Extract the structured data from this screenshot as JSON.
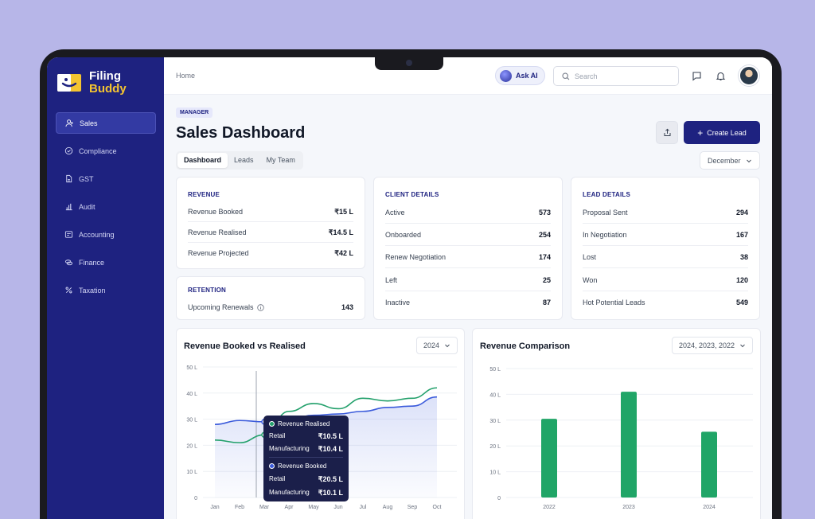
{
  "app": {
    "name_line1": "Filing",
    "name_line2": "Buddy"
  },
  "sidebar": {
    "items": [
      {
        "label": "Sales",
        "icon": "users-icon",
        "active": true
      },
      {
        "label": "Compliance",
        "icon": "check-circle-icon"
      },
      {
        "label": "GST",
        "icon": "document-icon"
      },
      {
        "label": "Audit",
        "icon": "bar-chart-icon"
      },
      {
        "label": "Accounting",
        "icon": "ledger-icon"
      },
      {
        "label": "Finance",
        "icon": "coins-icon"
      },
      {
        "label": "Taxation",
        "icon": "percent-icon"
      }
    ]
  },
  "topbar": {
    "breadcrumb": "Home",
    "ask_ai": "Ask AI",
    "search_placeholder": "Search"
  },
  "header": {
    "badge": "MANAGER",
    "title": "Sales Dashboard",
    "create_label": "Create Lead"
  },
  "tabs": [
    "Dashboard",
    "Leads",
    "My Team"
  ],
  "month_select": "December",
  "revenue": {
    "title": "REVENUE",
    "rows": [
      {
        "label": "Revenue Booked",
        "value": "₹15 L"
      },
      {
        "label": "Revenue Realised",
        "value": "₹14.5 L"
      },
      {
        "label": "Revenue Projected",
        "value": "₹42 L"
      }
    ]
  },
  "retention": {
    "title": "RETENTION",
    "label": "Upcoming Renewals",
    "value": "143"
  },
  "client": {
    "title": "CLIENT DETAILS",
    "rows": [
      {
        "label": "Active",
        "value": "573"
      },
      {
        "label": "Onboarded",
        "value": "254"
      },
      {
        "label": "Renew Negotiation",
        "value": "174"
      },
      {
        "label": "Left",
        "value": "25"
      },
      {
        "label": "Inactive",
        "value": "87"
      }
    ]
  },
  "lead": {
    "title": "LEAD DETAILS",
    "rows": [
      {
        "label": "Proposal Sent",
        "value": "294"
      },
      {
        "label": "In Negotiation",
        "value": "167"
      },
      {
        "label": "Lost",
        "value": "38"
      },
      {
        "label": "Won",
        "value": "120"
      },
      {
        "label": "Hot Potential Leads",
        "value": "549"
      }
    ]
  },
  "chart_left": {
    "title": "Revenue Booked vs Realised",
    "select": "2024"
  },
  "chart_right": {
    "title": "Revenue Comparison",
    "select": "2024, 2023, 2022"
  },
  "tooltip": {
    "realised_title": "Revenue Realised",
    "booked_title": "Revenue Booked",
    "retail_label": "Retail",
    "manufacturing_label": "Manufacturing",
    "realised_retail": "₹10.5 L",
    "realised_manufacturing": "₹10.4 L",
    "booked_retail": "₹20.5 L",
    "booked_manufacturing": "₹10.1 L"
  },
  "colors": {
    "primary": "#1e2280",
    "booked": "#3b5bdb",
    "realised": "#22a06b",
    "bar": "#20a567"
  },
  "chart_data": [
    {
      "type": "line",
      "title": "Revenue Booked vs Realised",
      "x": [
        "Jan",
        "Feb",
        "Mar",
        "Apr",
        "May",
        "Jun",
        "Jul",
        "Aug",
        "Sep",
        "Oct"
      ],
      "y_ticks": [
        "50 L",
        "40 L",
        "30 L",
        "20 L",
        "10 L",
        "0"
      ],
      "ylim": [
        0,
        50
      ],
      "series": [
        {
          "name": "Revenue Booked",
          "values": [
            28,
            29.5,
            29,
            30,
            31.5,
            32,
            33,
            34.5,
            35,
            38.5
          ]
        },
        {
          "name": "Revenue Realised",
          "values": [
            22,
            21,
            24,
            33,
            36,
            34,
            38,
            37,
            38,
            42
          ]
        }
      ]
    },
    {
      "type": "bar",
      "title": "Revenue Comparison",
      "categories": [
        "2022",
        "2023",
        "2024"
      ],
      "values": [
        30.5,
        41,
        25.5
      ],
      "y_ticks": [
        "50 L",
        "40 L",
        "30 L",
        "20 L",
        "10 L",
        "0"
      ],
      "ylim": [
        0,
        50
      ]
    }
  ]
}
